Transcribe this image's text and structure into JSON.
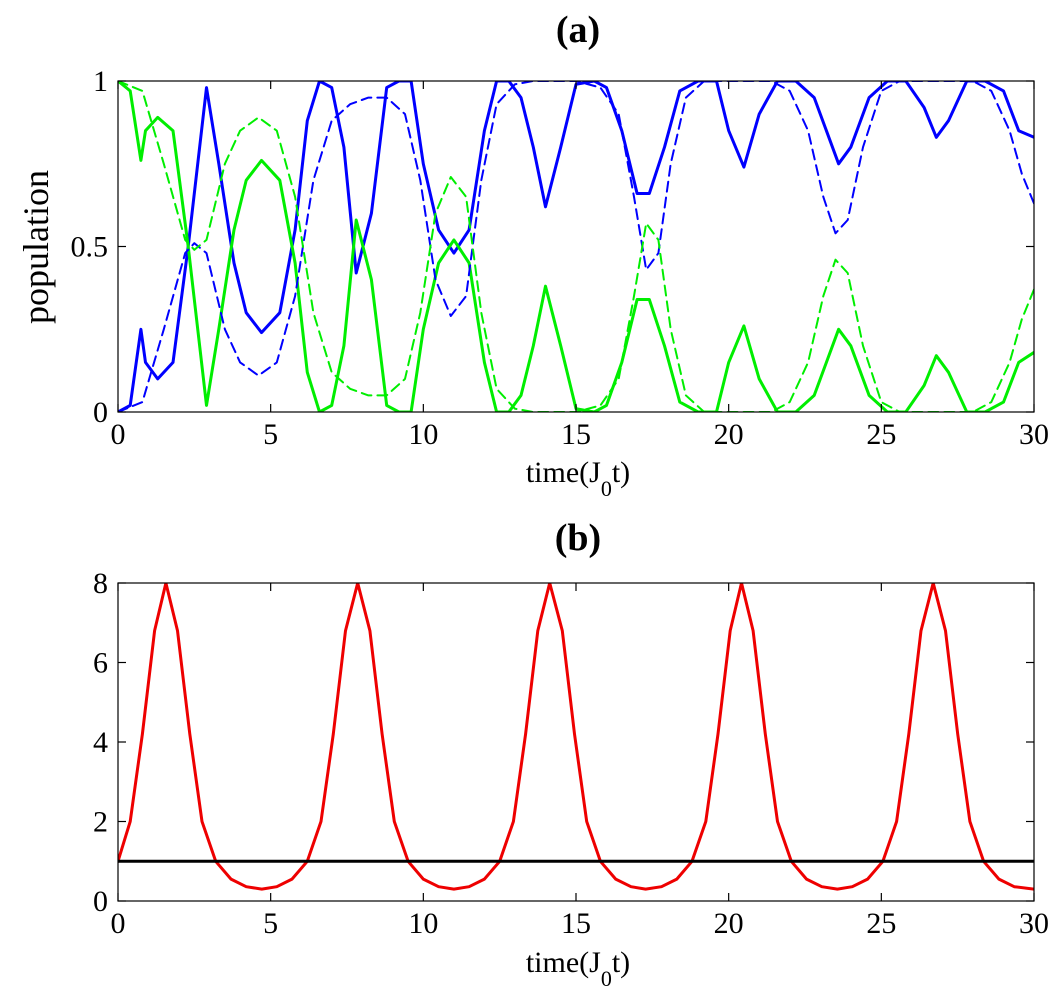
{
  "chart_data": [
    {
      "type": "line",
      "title": "(a)",
      "xlabel": "time(J",
      "xlabel_sub": "0",
      "xlabel_tail": "t)",
      "ylabel": "population",
      "xlim": [
        0,
        30
      ],
      "ylim": [
        0,
        1
      ],
      "xticks": [
        "0",
        "5",
        "10",
        "15",
        "20",
        "25",
        "30"
      ],
      "yticks": [
        "0",
        "0.5",
        "1"
      ],
      "grid": false,
      "series": [
        {
          "color": "#0000ff",
          "style": "solid",
          "x": [
            0,
            0.4,
            0.75,
            0.9,
            1.3,
            1.8,
            2.3,
            2.9,
            3.3,
            3.8,
            4.2,
            4.7,
            5.3,
            5.8,
            6.2,
            6.6,
            7.0,
            7.4,
            7.8,
            8.3,
            8.8,
            9.2,
            9.6,
            10.0,
            10.5,
            11.0,
            11.5,
            12.0,
            12.4,
            12.8,
            13.2,
            13.6,
            14.0,
            14.5,
            15.0,
            15.6,
            16.0,
            16.5,
            17.0,
            17.4,
            17.9,
            18.4,
            19.0,
            19.6,
            20.0,
            20.5,
            21.0,
            21.6,
            22.2,
            22.8,
            23.2,
            23.6,
            24.0,
            24.6,
            25.2,
            25.8,
            26.4,
            26.8,
            27.2,
            27.8,
            28.4,
            29.0,
            29.5,
            30.0
          ],
          "y": [
            0,
            0.02,
            0.25,
            0.15,
            0.1,
            0.15,
            0.5,
            0.98,
            0.75,
            0.45,
            0.3,
            0.24,
            0.3,
            0.55,
            0.88,
            1.0,
            0.98,
            0.8,
            0.42,
            0.6,
            0.98,
            1.0,
            1.0,
            0.75,
            0.55,
            0.48,
            0.55,
            0.85,
            1.0,
            1.0,
            0.95,
            0.8,
            0.62,
            0.8,
            0.99,
            1.0,
            0.98,
            0.85,
            0.66,
            0.66,
            0.8,
            0.97,
            1.0,
            1.0,
            0.85,
            0.74,
            0.9,
            1.0,
            1.0,
            0.95,
            0.85,
            0.75,
            0.8,
            0.95,
            1.0,
            1.0,
            0.92,
            0.83,
            0.88,
            1.0,
            1.0,
            0.97,
            0.85,
            0.83
          ]
        },
        {
          "color": "#00ee00",
          "style": "solid",
          "x": [
            0,
            0.4,
            0.75,
            0.9,
            1.3,
            1.8,
            2.3,
            2.9,
            3.3,
            3.8,
            4.2,
            4.7,
            5.3,
            5.8,
            6.2,
            6.6,
            7.0,
            7.4,
            7.8,
            8.3,
            8.8,
            9.2,
            9.6,
            10.0,
            10.5,
            11.0,
            11.5,
            12.0,
            12.4,
            12.8,
            13.2,
            13.6,
            14.0,
            14.5,
            15.0,
            15.6,
            16.0,
            16.5,
            17.0,
            17.4,
            17.9,
            18.4,
            19.0,
            19.6,
            20.0,
            20.5,
            21.0,
            21.6,
            22.2,
            22.8,
            23.2,
            23.6,
            24.0,
            24.6,
            25.2,
            25.8,
            26.4,
            26.8,
            27.2,
            27.8,
            28.4,
            29.0,
            29.5,
            30.0
          ],
          "y": [
            1.0,
            0.97,
            0.76,
            0.85,
            0.89,
            0.85,
            0.5,
            0.02,
            0.25,
            0.55,
            0.7,
            0.76,
            0.7,
            0.45,
            0.12,
            0.0,
            0.02,
            0.2,
            0.58,
            0.4,
            0.02,
            0.0,
            0.0,
            0.25,
            0.45,
            0.52,
            0.45,
            0.15,
            0.0,
            0.0,
            0.05,
            0.2,
            0.38,
            0.2,
            0.01,
            0.0,
            0.02,
            0.15,
            0.34,
            0.34,
            0.2,
            0.03,
            0.0,
            0.0,
            0.15,
            0.26,
            0.1,
            0.0,
            0.0,
            0.05,
            0.15,
            0.25,
            0.2,
            0.05,
            0.0,
            0.0,
            0.08,
            0.17,
            0.12,
            0.0,
            0.0,
            0.03,
            0.15,
            0.18
          ]
        },
        {
          "color": "#0000ff",
          "style": "dashed",
          "x": [
            0,
            0.8,
            1.5,
            2.2,
            2.5,
            2.9,
            3.5,
            4.0,
            4.6,
            5.2,
            5.8,
            6.4,
            7.0,
            7.6,
            8.2,
            8.8,
            9.4,
            9.9,
            10.4,
            10.9,
            11.4,
            11.9,
            12.4,
            13.0,
            13.6,
            14.2,
            15.0,
            15.8,
            16.4,
            16.9,
            17.3,
            17.7,
            18.1,
            18.6,
            19.2,
            19.8,
            20.6,
            21.4,
            22.0,
            22.6,
            23.1,
            23.5,
            23.9,
            24.4,
            25.0,
            25.6,
            26.4,
            27.2,
            28.0,
            28.6,
            29.2,
            29.6,
            30.0
          ],
          "y": [
            0,
            0.03,
            0.25,
            0.48,
            0.51,
            0.48,
            0.25,
            0.15,
            0.11,
            0.15,
            0.35,
            0.7,
            0.88,
            0.93,
            0.95,
            0.95,
            0.9,
            0.7,
            0.4,
            0.29,
            0.35,
            0.7,
            0.93,
            0.99,
            1.0,
            1.0,
            1.0,
            0.98,
            0.9,
            0.65,
            0.43,
            0.48,
            0.75,
            0.95,
            1.0,
            1.0,
            1.0,
            1.0,
            0.97,
            0.85,
            0.65,
            0.54,
            0.58,
            0.8,
            0.97,
            1.0,
            1.0,
            1.0,
            1.0,
            0.97,
            0.85,
            0.72,
            0.63
          ]
        },
        {
          "color": "#00ee00",
          "style": "dashed",
          "x": [
            0,
            0.8,
            1.5,
            2.2,
            2.5,
            2.9,
            3.5,
            4.0,
            4.6,
            5.2,
            5.8,
            6.4,
            7.0,
            7.6,
            8.2,
            8.8,
            9.4,
            9.9,
            10.4,
            10.9,
            11.4,
            11.9,
            12.4,
            13.0,
            13.6,
            14.2,
            15.0,
            15.8,
            16.4,
            16.9,
            17.3,
            17.7,
            18.1,
            18.6,
            19.2,
            19.8,
            20.6,
            21.4,
            22.0,
            22.6,
            23.1,
            23.5,
            23.9,
            24.4,
            25.0,
            25.6,
            26.4,
            27.2,
            28.0,
            28.6,
            29.2,
            29.6,
            30.0
          ],
          "y": [
            1.0,
            0.97,
            0.75,
            0.52,
            0.49,
            0.52,
            0.75,
            0.85,
            0.89,
            0.85,
            0.65,
            0.3,
            0.12,
            0.07,
            0.05,
            0.05,
            0.1,
            0.3,
            0.6,
            0.71,
            0.65,
            0.3,
            0.07,
            0.01,
            0.0,
            0.0,
            0.0,
            0.02,
            0.1,
            0.35,
            0.57,
            0.52,
            0.25,
            0.05,
            0.0,
            0.0,
            0.0,
            0.0,
            0.03,
            0.15,
            0.35,
            0.46,
            0.42,
            0.2,
            0.03,
            0.0,
            0.0,
            0.0,
            0.0,
            0.03,
            0.15,
            0.28,
            0.37
          ]
        }
      ]
    },
    {
      "type": "line",
      "title": "(b)",
      "xlabel": "time(J",
      "xlabel_sub": "0",
      "xlabel_tail": "t)",
      "ylabel": "",
      "xlim": [
        0,
        30
      ],
      "ylim": [
        0,
        8
      ],
      "xticks": [
        "0",
        "5",
        "10",
        "15",
        "20",
        "25",
        "30"
      ],
      "yticks": [
        "0",
        "2",
        "4",
        "6",
        "8"
      ],
      "grid": false,
      "series": [
        {
          "color": "#ee0000",
          "style": "solid",
          "x": [
            0,
            0.4,
            0.8,
            1.2,
            1.57,
            1.95,
            2.35,
            2.75,
            3.2,
            3.7,
            4.2,
            4.71,
            5.2,
            5.7,
            6.2,
            6.65,
            7.05,
            7.45,
            7.85,
            8.25,
            8.65,
            9.05,
            9.5,
            10.0,
            10.5,
            11.0,
            11.5,
            12.0,
            12.5,
            12.95,
            13.35,
            13.75,
            14.14,
            14.55,
            14.95,
            15.35,
            15.8,
            16.3,
            16.8,
            17.28,
            17.8,
            18.3,
            18.8,
            19.25,
            19.65,
            20.05,
            20.42,
            20.8,
            21.2,
            21.6,
            22.05,
            22.55,
            23.05,
            23.56,
            24.05,
            24.55,
            25.05,
            25.5,
            25.9,
            26.3,
            26.7,
            27.1,
            27.5,
            27.9,
            28.35,
            28.85,
            29.35,
            30.0
          ],
          "y": [
            1.0,
            2.0,
            4.2,
            6.8,
            8.0,
            6.8,
            4.2,
            2.0,
            1.0,
            0.55,
            0.36,
            0.3,
            0.36,
            0.55,
            1.0,
            2.0,
            4.2,
            6.8,
            8.0,
            6.8,
            4.2,
            2.0,
            1.0,
            0.55,
            0.36,
            0.3,
            0.36,
            0.55,
            1.0,
            2.0,
            4.2,
            6.8,
            8.0,
            6.8,
            4.2,
            2.0,
            1.0,
            0.55,
            0.36,
            0.3,
            0.36,
            0.55,
            1.0,
            2.0,
            4.2,
            6.8,
            8.0,
            6.8,
            4.2,
            2.0,
            1.0,
            0.55,
            0.36,
            0.3,
            0.36,
            0.55,
            1.0,
            2.0,
            4.2,
            6.8,
            8.0,
            6.8,
            4.2,
            2.0,
            1.0,
            0.55,
            0.36,
            0.3
          ]
        },
        {
          "color": "#000000",
          "style": "solid",
          "x": [
            0,
            30
          ],
          "y": [
            1,
            1
          ]
        }
      ]
    }
  ]
}
